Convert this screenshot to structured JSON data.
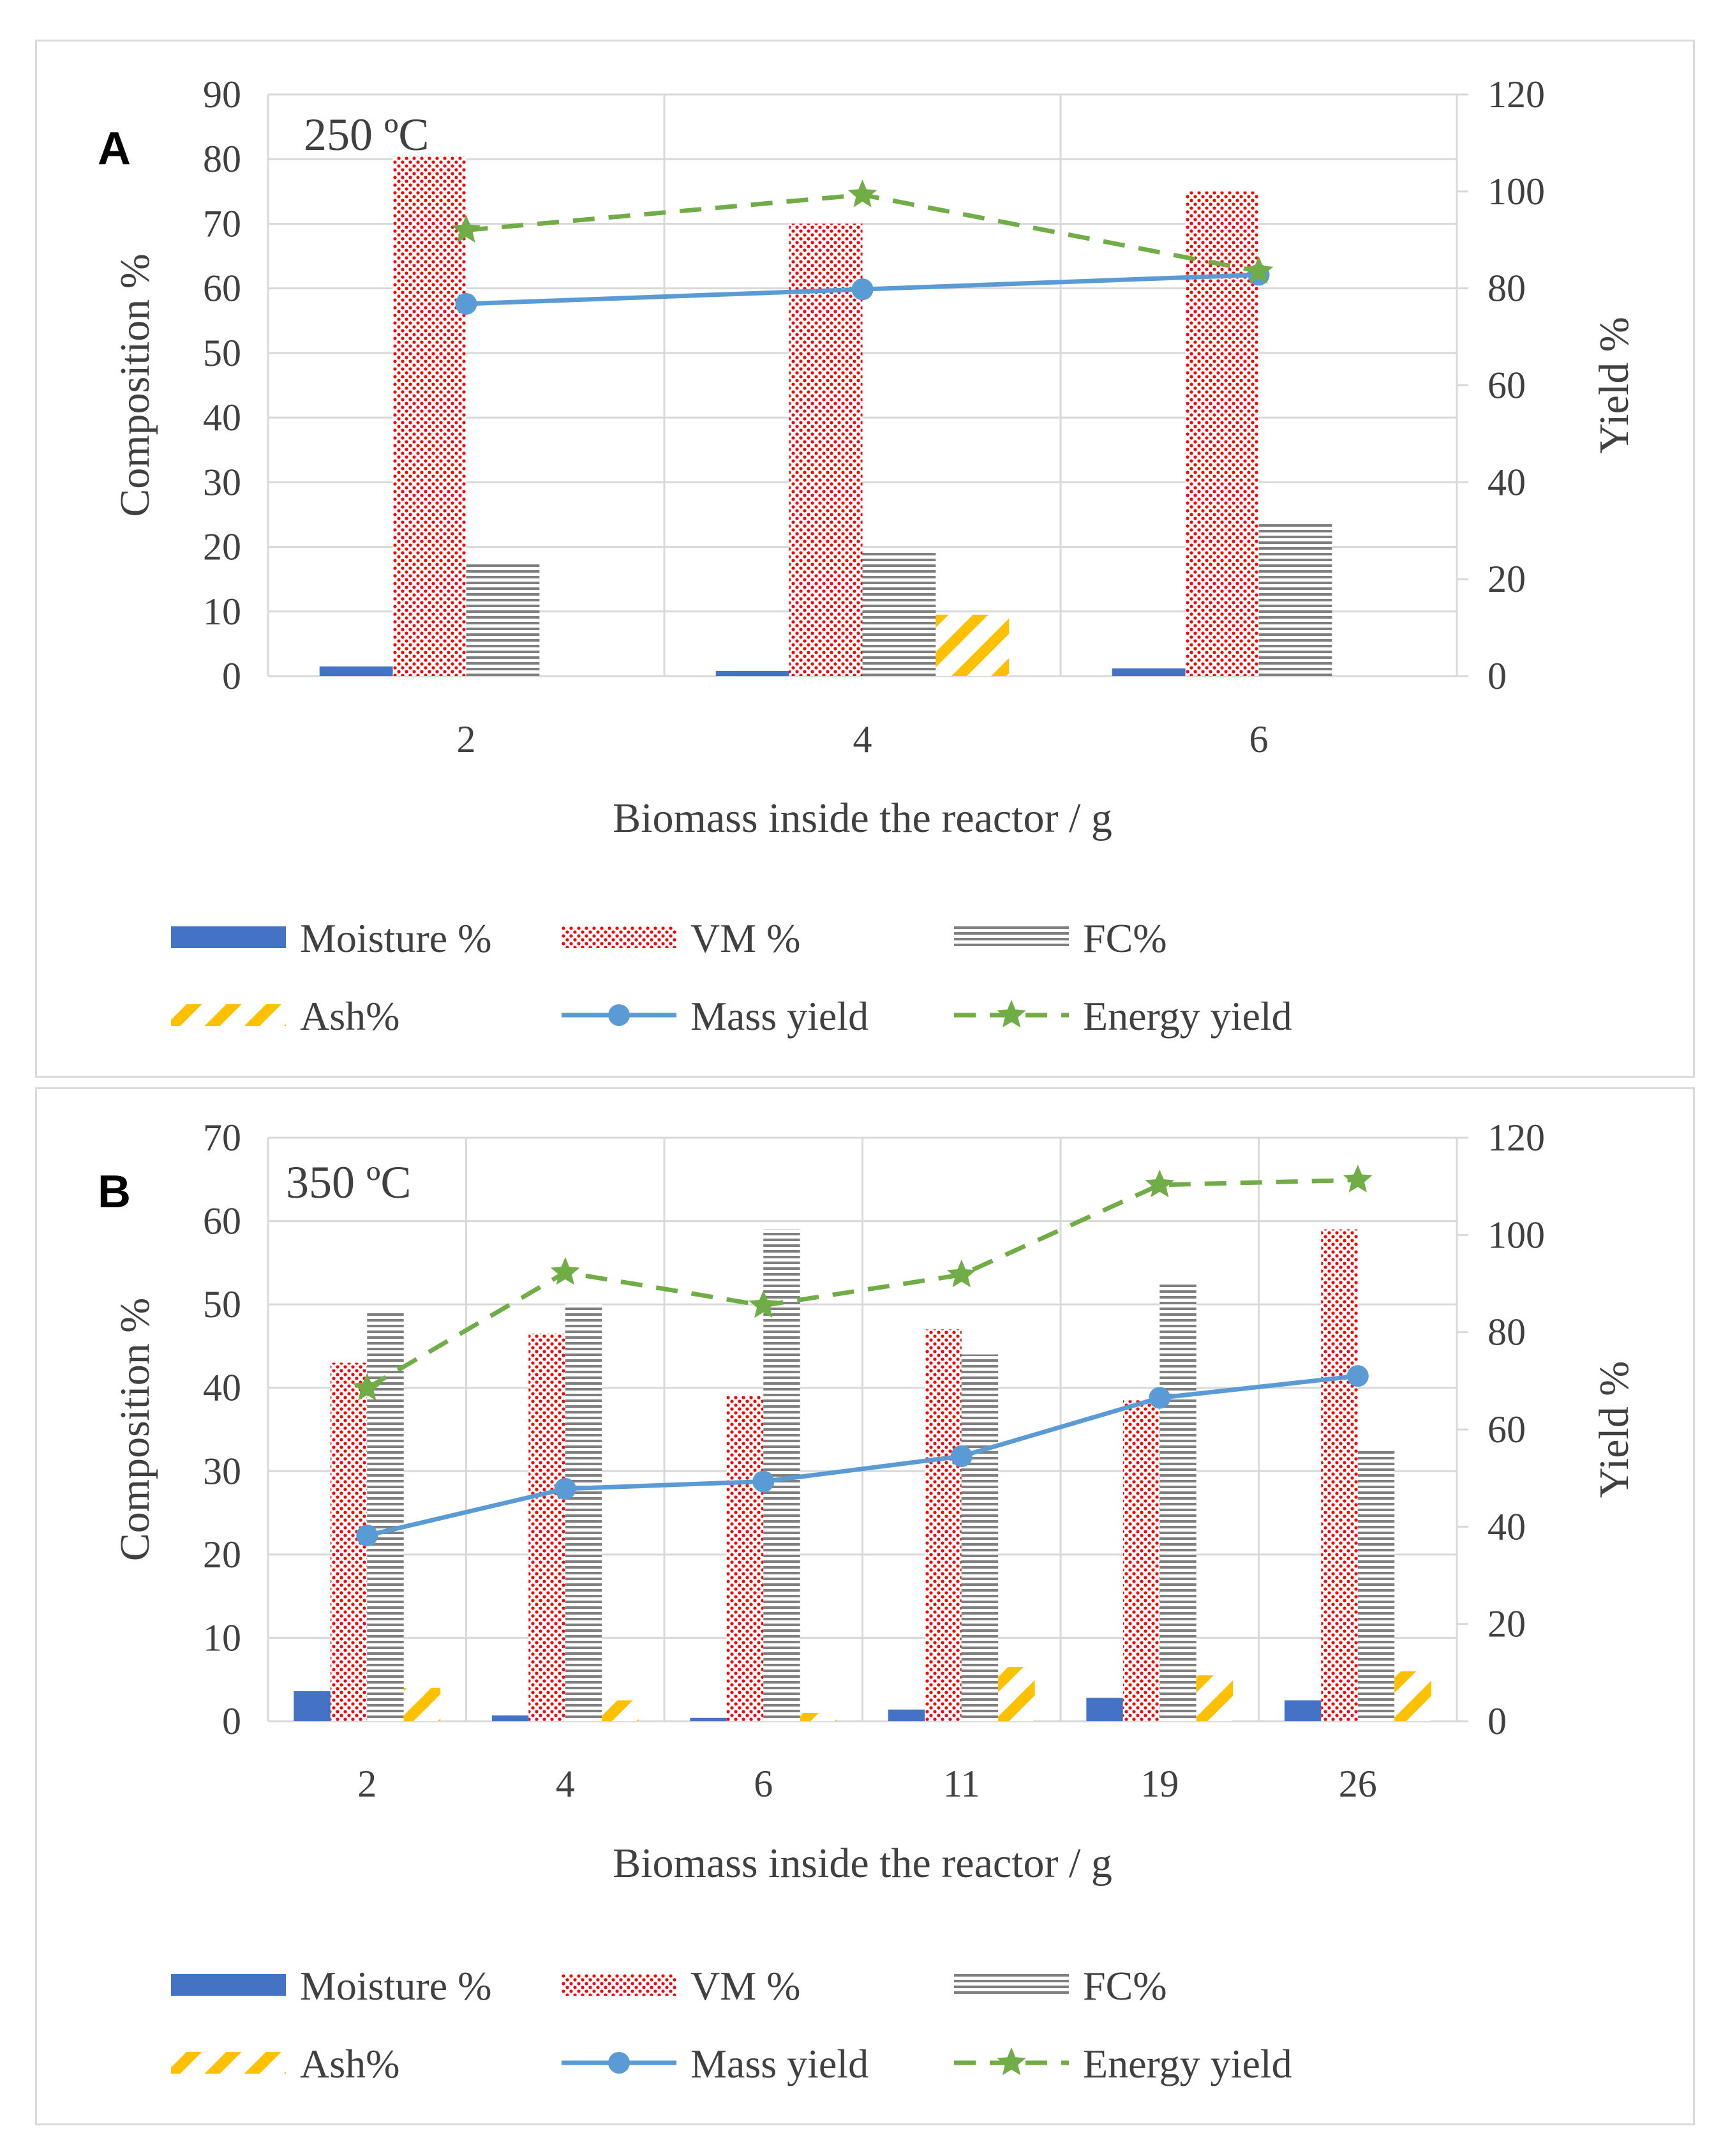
{
  "colors": {
    "moisture": "#4472C4",
    "vm": "#FF0000",
    "fc": "#7F7F7F",
    "ash": "#FFC000",
    "mass": "#5B9BD5",
    "energy": "#70AD47",
    "grid": "#d9d9d9",
    "axis_text": "#404040"
  },
  "chart_data": [
    {
      "id": "A",
      "type": "bar",
      "panel_letter": "A",
      "title": "250 ºC",
      "xlabel": "Biomass inside the reactor / g",
      "ylabel": "Composition %",
      "y2label": "Yield %",
      "ylim": [
        0,
        90
      ],
      "ystep": 10,
      "y2lim": [
        0,
        120
      ],
      "y2step": 20,
      "categories": [
        "2",
        "4",
        "6"
      ],
      "series": [
        {
          "name": "Moisture %",
          "kind": "bar",
          "key": "moisture",
          "values": [
            1.5,
            0.8,
            1.2
          ]
        },
        {
          "name": "VM %",
          "kind": "bar",
          "key": "vm",
          "values": [
            80.5,
            70,
            75
          ]
        },
        {
          "name": "FC%",
          "kind": "bar",
          "key": "fc",
          "values": [
            17.5,
            19.5,
            24
          ]
        },
        {
          "name": "Ash%",
          "kind": "bar",
          "key": "ash",
          "values": [
            0,
            9.5,
            0
          ]
        },
        {
          "name": "Mass yield",
          "kind": "line",
          "axis": "y2",
          "key": "mass",
          "values": [
            76.8,
            79.8,
            82.8
          ]
        },
        {
          "name": "Energy yield",
          "kind": "line",
          "axis": "y2",
          "key": "energy",
          "values": [
            92,
            99.3,
            83.5
          ]
        }
      ],
      "legend": [
        {
          "label": "Moisture %",
          "key": "moisture"
        },
        {
          "label": "VM %",
          "key": "vm"
        },
        {
          "label": "FC%",
          "key": "fc"
        },
        {
          "label": "Ash%",
          "key": "ash"
        },
        {
          "label": "Mass yield",
          "key": "mass"
        },
        {
          "label": "Energy yield",
          "key": "energy"
        }
      ]
    },
    {
      "id": "B",
      "type": "bar",
      "panel_letter": "B",
      "title": "350 ºC",
      "xlabel": "Biomass inside the reactor / g",
      "ylabel": "Composition %",
      "y2label": "Yield %",
      "ylim": [
        0,
        70
      ],
      "ystep": 10,
      "y2lim": [
        0,
        120
      ],
      "y2step": 20,
      "categories": [
        "2",
        "4",
        "6",
        "11",
        "19",
        "26"
      ],
      "series": [
        {
          "name": "Moisture %",
          "kind": "bar",
          "key": "moisture",
          "values": [
            3.6,
            0.7,
            0.4,
            1.4,
            2.8,
            2.5
          ]
        },
        {
          "name": "VM %",
          "kind": "bar",
          "key": "vm",
          "values": [
            43,
            46.5,
            39,
            47,
            38.5,
            59
          ]
        },
        {
          "name": "FC%",
          "kind": "bar",
          "key": "fc",
          "values": [
            49,
            50,
            59,
            44,
            52.5,
            32.5
          ]
        },
        {
          "name": "Ash%",
          "kind": "bar",
          "key": "ash",
          "values": [
            4,
            2.5,
            1,
            6.5,
            5.5,
            6
          ]
        },
        {
          "name": "Mass yield",
          "kind": "line",
          "axis": "y2",
          "key": "mass",
          "values": [
            38.2,
            47.8,
            49.3,
            54.5,
            66.5,
            71
          ]
        },
        {
          "name": "Energy yield",
          "kind": "line",
          "axis": "y2",
          "key": "energy",
          "values": [
            68.5,
            92.3,
            85.5,
            91.8,
            110.3,
            111.3
          ]
        }
      ],
      "legend": [
        {
          "label": "Moisture %",
          "key": "moisture"
        },
        {
          "label": "VM %",
          "key": "vm"
        },
        {
          "label": "FC%",
          "key": "fc"
        },
        {
          "label": "Ash%",
          "key": "ash"
        },
        {
          "label": "Mass yield",
          "key": "mass"
        },
        {
          "label": "Energy yield",
          "key": "energy"
        }
      ]
    }
  ]
}
